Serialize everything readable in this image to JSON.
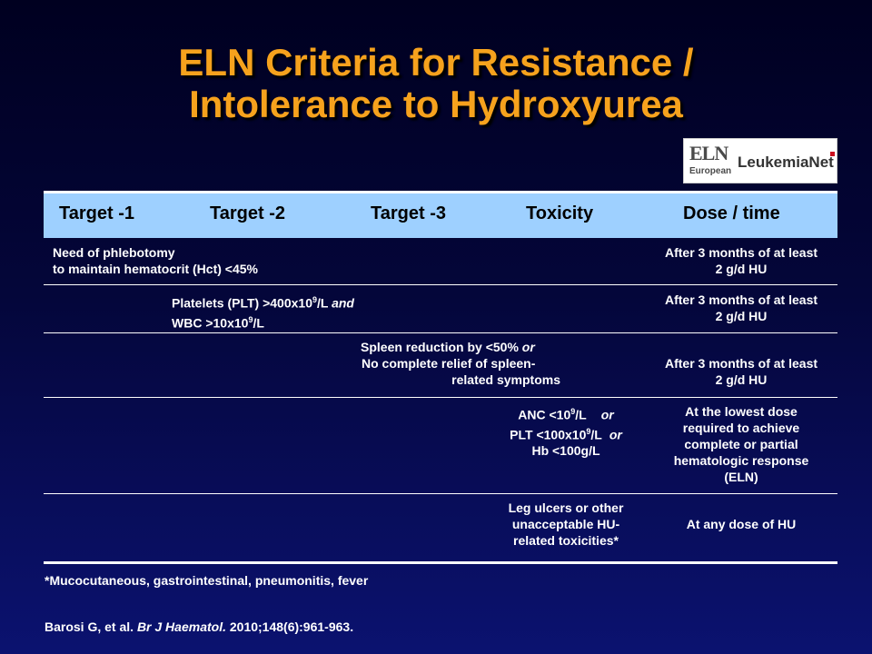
{
  "title": {
    "line1": "ELN Criteria for Resistance /",
    "line2": "Intolerance to Hydroxyurea"
  },
  "logo": {
    "eln": "ELN",
    "european": "European",
    "name": "LeukemiaNet"
  },
  "table": {
    "headers": [
      "Target -1",
      "Target -2",
      "Target -3",
      "Toxicity",
      "Dose / time"
    ],
    "rows": [
      {
        "target1": [
          "Need of phlebotomy",
          "to maintain hematocrit (Hct) <45%"
        ],
        "dose": [
          "After 3 months of at least",
          "2 g/d HU"
        ]
      },
      {
        "target2_a": "Platelets (PLT) >400x10",
        "target2_sup1": "9",
        "target2_b": "/L ",
        "target2_and": "and",
        "target2_c": "WBC >10x10",
        "target2_sup2": "9",
        "target2_d": "/L",
        "dose": [
          "After 3 months of at least",
          "2 g/d HU"
        ]
      },
      {
        "target3_a": "Spleen reduction by <50% ",
        "target3_or": "or",
        "target3_b": "No complete relief of spleen-",
        "target3_c": "related symptoms",
        "dose": [
          "After 3 months of at least",
          "2 g/d HU"
        ]
      },
      {
        "tox_a": "ANC <10",
        "tox_sup1": "9",
        "tox_a2": "/L",
        "tox_or1": "or",
        "tox_b": "PLT <100x10",
        "tox_sup2": "9",
        "tox_b2": "/L",
        "tox_or2": "or",
        "tox_c": "Hb <100g/L",
        "dose": [
          "At the lowest dose",
          "required to achieve",
          "complete or partial",
          "hematologic  response",
          "(ELN)"
        ]
      },
      {
        "tox": [
          "Leg ulcers or other",
          "unacceptable HU-",
          "related toxicities*"
        ],
        "dose": "At any dose of HU"
      }
    ]
  },
  "footnote": "*Mucocutaneous, gastrointestinal, pneumonitis, fever",
  "citation": {
    "authors": "Barosi G, et al. ",
    "journal": "Br J Haematol.",
    "details": " 2010;148(6):961-963."
  },
  "colors": {
    "title": "#f6a21d",
    "header_bg": "#9ed0ff",
    "background_top": "#000020",
    "background_bottom": "#0b1270"
  }
}
